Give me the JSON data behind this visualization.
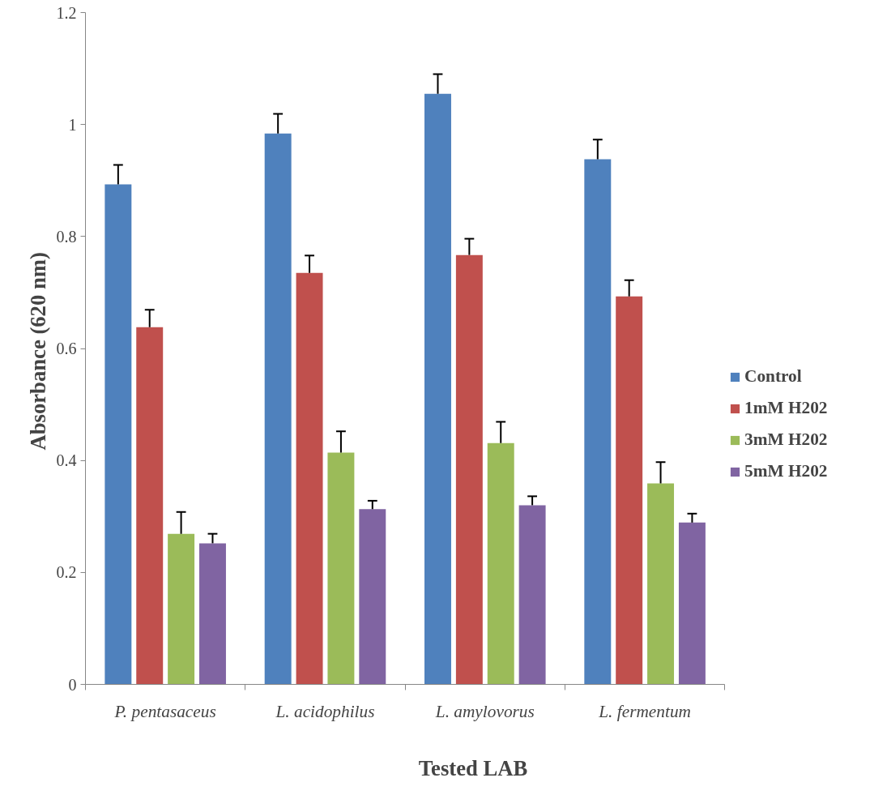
{
  "chart_data": {
    "type": "bar",
    "xlabel": "Tested LAB",
    "ylabel": "Absorbance  (620 nm)",
    "categories": [
      "P. pentasaceus",
      "L. acidophilus",
      "L. amylovorus",
      "L. fermentum"
    ],
    "ylim": [
      0,
      1.2
    ],
    "yticks": [
      0,
      0.2,
      0.4,
      0.6,
      0.8,
      1,
      1.2
    ],
    "grid": false,
    "legend": "right",
    "series": [
      {
        "name": "Control",
        "color": "#4f81bd",
        "values": [
          0.893,
          0.984,
          1.055,
          0.938
        ],
        "errors": [
          [
            0.893,
            0.928
          ],
          [
            0.984,
            1.019
          ],
          [
            1.055,
            1.09
          ],
          [
            0.938,
            0.973
          ]
        ]
      },
      {
        "name": "1mM H202",
        "color": "#c0504d",
        "values": [
          0.638,
          0.735,
          0.767,
          0.693
        ],
        "errors": [
          [
            0.638,
            0.669
          ],
          [
            0.735,
            0.766
          ],
          [
            0.767,
            0.796
          ],
          [
            0.693,
            0.722
          ]
        ]
      },
      {
        "name": "3mM H202",
        "color": "#9bbb59",
        "values": [
          0.269,
          0.414,
          0.431,
          0.359
        ],
        "errors": [
          [
            0.269,
            0.308
          ],
          [
            0.414,
            0.452
          ],
          [
            0.431,
            0.469
          ],
          [
            0.359,
            0.397
          ]
        ]
      },
      {
        "name": "5mM H202",
        "color": "#8064a2",
        "values": [
          0.252,
          0.313,
          0.32,
          0.289
        ],
        "errors": [
          [
            0.252,
            0.269
          ],
          [
            0.313,
            0.328
          ],
          [
            0.32,
            0.336
          ],
          [
            0.289,
            0.305
          ]
        ]
      }
    ]
  }
}
